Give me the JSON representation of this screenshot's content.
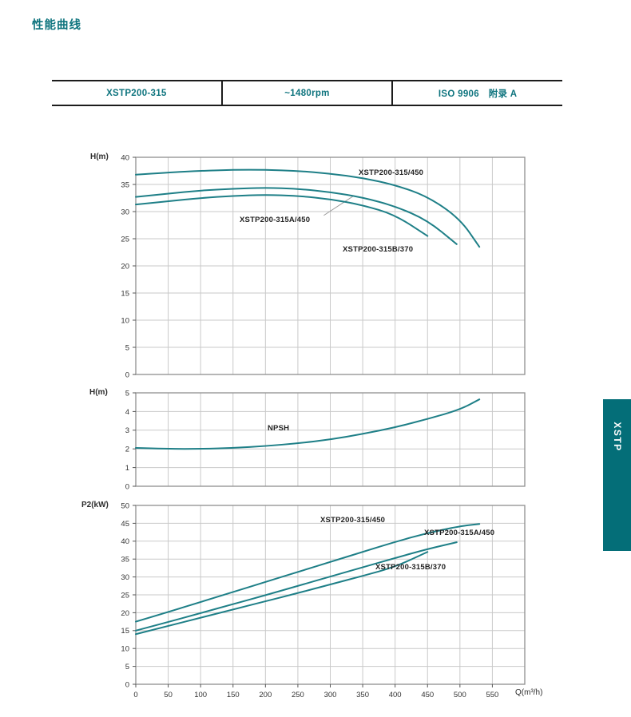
{
  "page_title": "性能曲线",
  "header_table": {
    "model": "XSTP200-315",
    "speed": "~1480rpm",
    "standard": "ISO 9906　附录 A"
  },
  "side_tab": {
    "label": "XSTP",
    "color": "#046e78"
  },
  "colors": {
    "teal_text": "#0e747e",
    "curve": "#1e7f87",
    "grid": "#c9c9c9",
    "frame": "#8f8f8f",
    "tick_text": "#333333",
    "leader_line": "#9a9a9a"
  },
  "chart_data": [
    {
      "type": "line",
      "title": "",
      "xlabel": "",
      "ylabel": "H(m)",
      "ylim": [
        0,
        40
      ],
      "yticks": [
        0,
        5,
        10,
        15,
        20,
        25,
        30,
        35,
        40
      ],
      "xlim": [
        0,
        600
      ],
      "xgrid_step": 50,
      "show_xticks": false,
      "legend_position": "inline-labels",
      "grid": true,
      "series": [
        {
          "name": "XSTP200-315/450",
          "points": [
            [
              0,
              36.8
            ],
            [
              50,
              37.2
            ],
            [
              100,
              37.5
            ],
            [
              150,
              37.7
            ],
            [
              200,
              37.7
            ],
            [
              250,
              37.5
            ],
            [
              300,
              37.0
            ],
            [
              350,
              36.2
            ],
            [
              400,
              34.9
            ],
            [
              450,
              32.8
            ],
            [
              500,
              28.7
            ],
            [
              530,
              23.5
            ]
          ]
        },
        {
          "name": "XSTP200-315A/450",
          "points": [
            [
              0,
              32.7
            ],
            [
              50,
              33.3
            ],
            [
              100,
              33.9
            ],
            [
              150,
              34.2
            ],
            [
              200,
              34.4
            ],
            [
              250,
              34.2
            ],
            [
              300,
              33.6
            ],
            [
              350,
              32.6
            ],
            [
              400,
              31.0
            ],
            [
              450,
              28.4
            ],
            [
              495,
              24.0
            ]
          ]
        },
        {
          "name": "XSTP200-315B/370",
          "points": [
            [
              0,
              31.3
            ],
            [
              50,
              31.9
            ],
            [
              100,
              32.5
            ],
            [
              150,
              32.9
            ],
            [
              200,
              33.1
            ],
            [
              250,
              32.9
            ],
            [
              300,
              32.3
            ],
            [
              350,
              31.2
            ],
            [
              400,
              29.4
            ],
            [
              450,
              25.5
            ]
          ]
        }
      ],
      "annotation_line": {
        "x1": 290,
        "y1": 29.3,
        "x2": 336,
        "y2": 32.9
      }
    },
    {
      "type": "line",
      "title": "",
      "xlabel": "",
      "ylabel": "H(m)",
      "ylim": [
        0,
        5
      ],
      "yticks": [
        0,
        1,
        2,
        3,
        4,
        5
      ],
      "xlim": [
        0,
        600
      ],
      "xgrid_step": 50,
      "show_xticks": false,
      "grid": true,
      "series": [
        {
          "name": "NPSH",
          "points": [
            [
              0,
              2.05
            ],
            [
              50,
              2.0
            ],
            [
              100,
              2.0
            ],
            [
              150,
              2.05
            ],
            [
              200,
              2.15
            ],
            [
              250,
              2.3
            ],
            [
              300,
              2.5
            ],
            [
              350,
              2.8
            ],
            [
              400,
              3.15
            ],
            [
              450,
              3.6
            ],
            [
              500,
              4.1
            ],
            [
              530,
              4.65
            ]
          ]
        }
      ]
    },
    {
      "type": "line",
      "title": "",
      "xlabel": "Q(m³/h)",
      "ylabel": "P2(kW)",
      "ylim": [
        0,
        50
      ],
      "yticks": [
        0,
        5,
        10,
        15,
        20,
        25,
        30,
        35,
        40,
        45,
        50
      ],
      "xlim": [
        0,
        600
      ],
      "xgrid_step": 50,
      "xticks": [
        0,
        50,
        100,
        150,
        200,
        250,
        300,
        350,
        400,
        450,
        500,
        550
      ],
      "show_xticks": true,
      "grid": true,
      "series": [
        {
          "name": "XSTP200-315/450",
          "points": [
            [
              0,
              17.5
            ],
            [
              50,
              20.2
            ],
            [
              100,
              23.0
            ],
            [
              150,
              25.8
            ],
            [
              200,
              28.6
            ],
            [
              250,
              31.4
            ],
            [
              300,
              34.2
            ],
            [
              350,
              37.0
            ],
            [
              400,
              39.8
            ],
            [
              450,
              42.3
            ],
            [
              500,
              44.2
            ],
            [
              530,
              44.8
            ]
          ]
        },
        {
          "name": "XSTP200-315A/450",
          "points": [
            [
              0,
              15.0
            ],
            [
              50,
              17.4
            ],
            [
              100,
              19.9
            ],
            [
              150,
              22.4
            ],
            [
              200,
              24.9
            ],
            [
              250,
              27.5
            ],
            [
              300,
              30.1
            ],
            [
              350,
              32.7
            ],
            [
              400,
              35.3
            ],
            [
              450,
              37.8
            ],
            [
              495,
              39.7
            ]
          ]
        },
        {
          "name": "XSTP200-315B/370",
          "points": [
            [
              0,
              14.0
            ],
            [
              50,
              16.3
            ],
            [
              100,
              18.6
            ],
            [
              150,
              20.9
            ],
            [
              200,
              23.2
            ],
            [
              250,
              25.5
            ],
            [
              300,
              27.9
            ],
            [
              350,
              30.3
            ],
            [
              400,
              32.8
            ],
            [
              450,
              37.0
            ]
          ]
        }
      ]
    }
  ]
}
